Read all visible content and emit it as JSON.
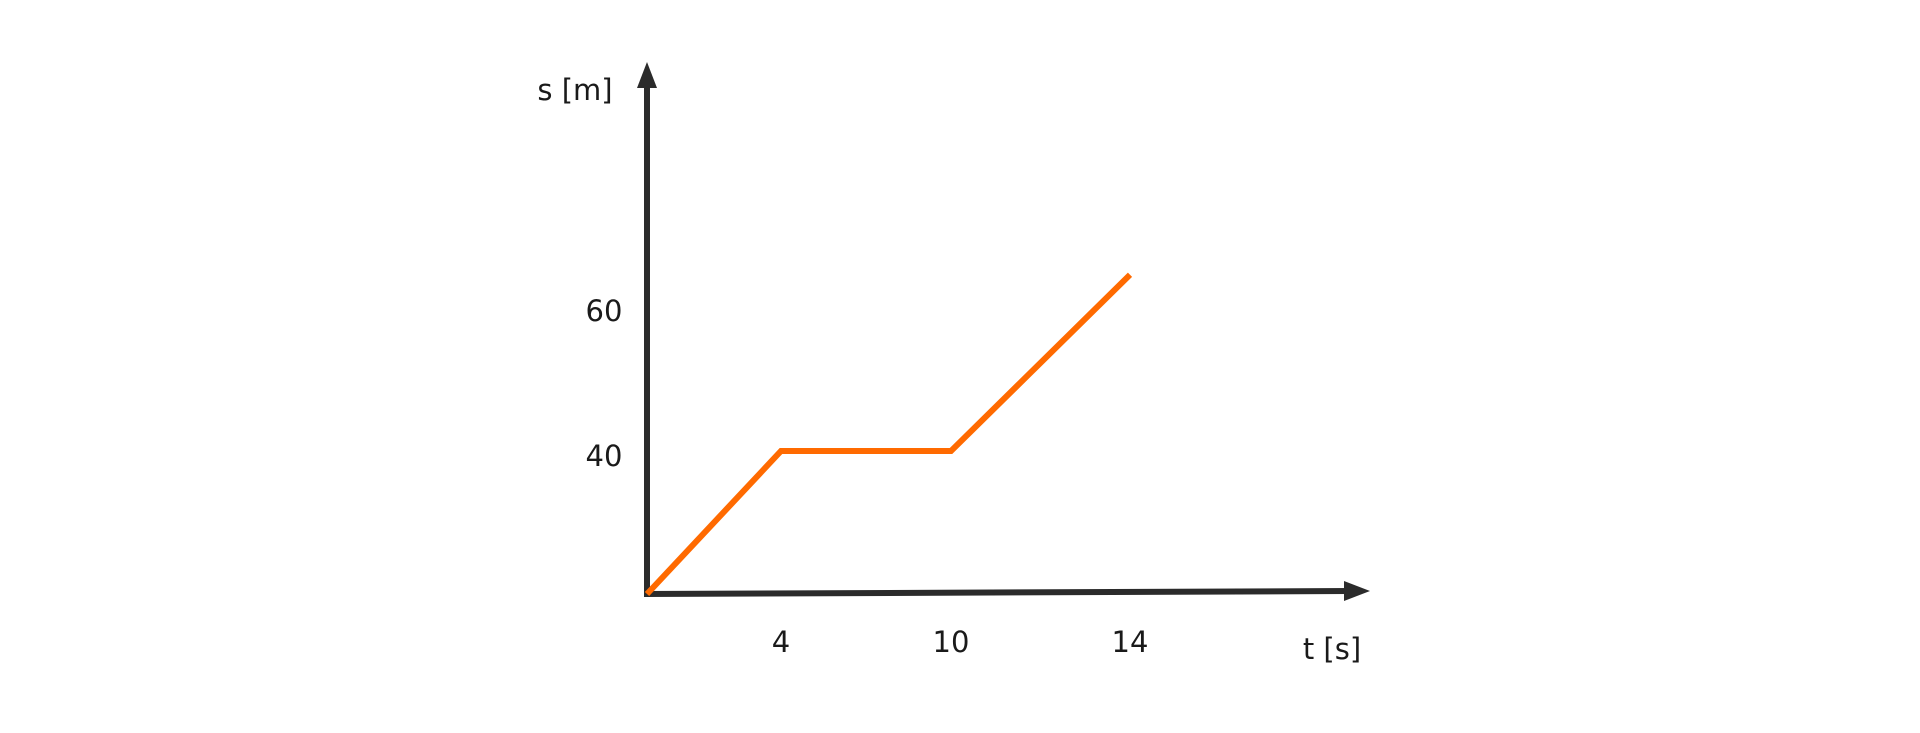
{
  "chart_data": {
    "type": "line",
    "title": "",
    "xlabel": "t [s]",
    "ylabel": "s [m]",
    "x_ticks": [
      4,
      10,
      14
    ],
    "y_ticks": [
      40,
      60
    ],
    "x_tick_labels": [
      "4",
      "10",
      "14"
    ],
    "y_tick_labels": [
      "40",
      "60"
    ],
    "grid": false,
    "series": [
      {
        "x": [
          0,
          4,
          10,
          14
        ],
        "y": [
          0,
          40,
          40,
          65
        ],
        "color": "#ff6a00"
      }
    ],
    "axis_color": "#2b2b2b"
  }
}
